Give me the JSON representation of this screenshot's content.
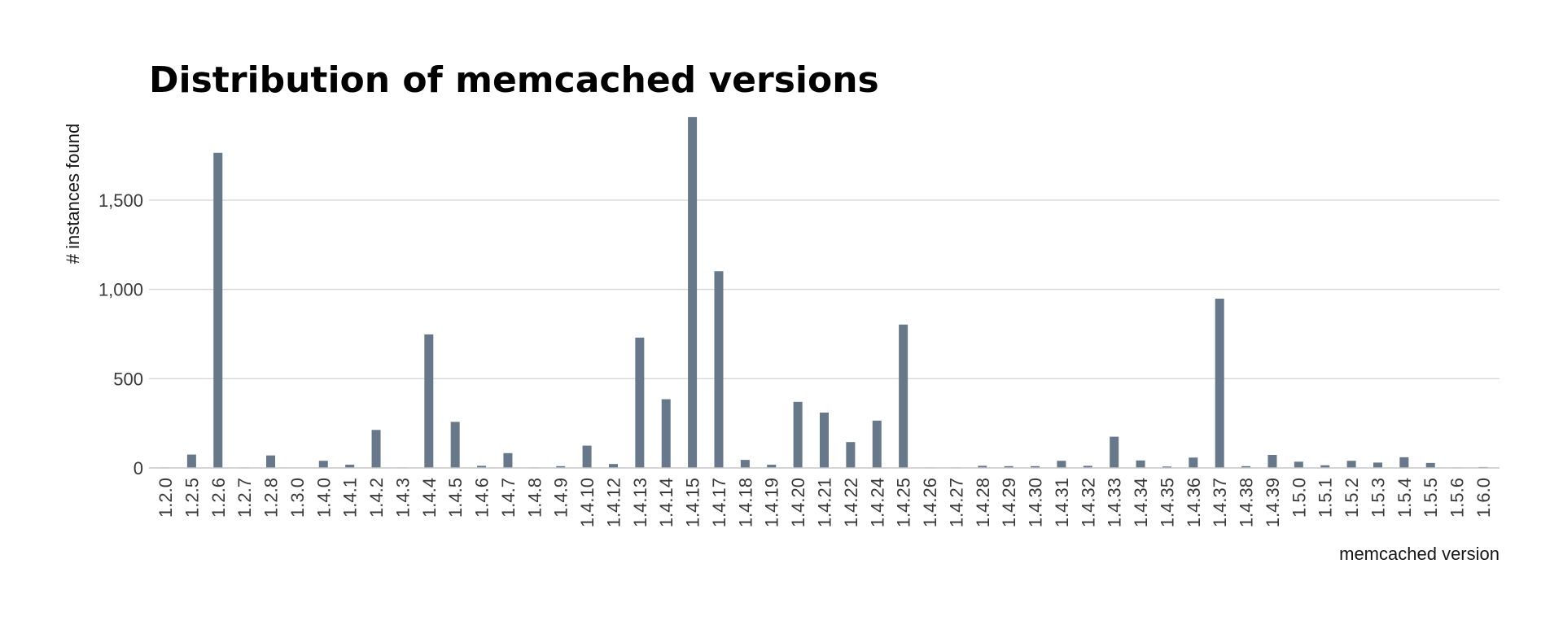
{
  "chart_data": {
    "type": "bar",
    "title": "Distribution of memcached versions",
    "xlabel": "memcached version",
    "ylabel": "# instances found",
    "ylim": [
      0,
      1960
    ],
    "yticks": [
      0,
      500,
      1000,
      1500
    ],
    "ytick_labels": [
      "0",
      "500",
      "1,000",
      "1,500"
    ],
    "grid": true,
    "bar_color": "#66788a",
    "categories": [
      "1.2.0",
      "1.2.5",
      "1.2.6",
      "1.2.7",
      "1.2.8",
      "1.3.0",
      "1.4.0",
      "1.4.1",
      "1.4.2",
      "1.4.3",
      "1.4.4",
      "1.4.5",
      "1.4.6",
      "1.4.7",
      "1.4.8",
      "1.4.9",
      "1.4.10",
      "1.4.12",
      "1.4.13",
      "1.4.14",
      "1.4.15",
      "1.4.17",
      "1.4.18",
      "1.4.19",
      "1.4.20",
      "1.4.21",
      "1.4.22",
      "1.4.24",
      "1.4.25",
      "1.4.26",
      "1.4.27",
      "1.4.28",
      "1.4.29",
      "1.4.30",
      "1.4.31",
      "1.4.32",
      "1.4.33",
      "1.4.34",
      "1.4.35",
      "1.4.36",
      "1.4.37",
      "1.4.38",
      "1.4.39",
      "1.5.0",
      "1.5.1",
      "1.5.2",
      "1.5.3",
      "1.5.4",
      "1.5.5",
      "1.5.6",
      "1.6.0"
    ],
    "values": [
      3,
      75,
      1765,
      3,
      70,
      2,
      40,
      18,
      213,
      3,
      748,
      258,
      12,
      83,
      3,
      10,
      125,
      22,
      730,
      385,
      1965,
      1102,
      45,
      18,
      370,
      310,
      145,
      265,
      803,
      3,
      3,
      12,
      10,
      10,
      40,
      12,
      175,
      42,
      8,
      58,
      948,
      10,
      73,
      35,
      15,
      40,
      30,
      60,
      28,
      3,
      5
    ]
  }
}
